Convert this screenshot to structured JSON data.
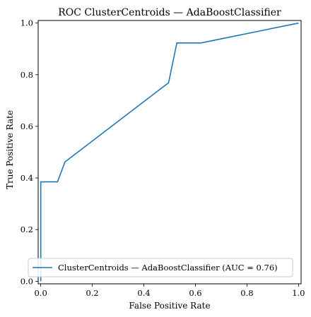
{
  "chart_data": {
    "type": "line",
    "title": "ROC ClusterCentroids — AdaBoostClassifier",
    "xlabel": "False Positive Rate",
    "ylabel": "True Positive Rate",
    "xlim": [
      -0.01,
      1.01
    ],
    "ylim": [
      -0.01,
      1.01
    ],
    "xticks": [
      0.0,
      0.2,
      0.4,
      0.6,
      0.8,
      1.0
    ],
    "xtick_labels": [
      "0.0",
      "0.2",
      "0.4",
      "0.6",
      "0.8",
      "1.0"
    ],
    "yticks": [
      0.0,
      0.2,
      0.4,
      0.6,
      0.8,
      1.0
    ],
    "ytick_labels": [
      "0.0",
      "0.2",
      "0.4",
      "0.6",
      "0.8",
      "1.0"
    ],
    "grid": false,
    "legend_position": "lower-right",
    "series": [
      {
        "name": "ClusterCentroids — AdaBoostClassifier (AUC = 0.76)",
        "color": "#1f77b4",
        "x": [
          0.0,
          0.0,
          0.0,
          0.0,
          0.065,
          0.094,
          0.496,
          0.528,
          0.622,
          1.0
        ],
        "y": [
          0.0,
          0.077,
          0.077,
          0.385,
          0.385,
          0.462,
          0.769,
          0.923,
          0.923,
          1.0
        ]
      }
    ]
  }
}
